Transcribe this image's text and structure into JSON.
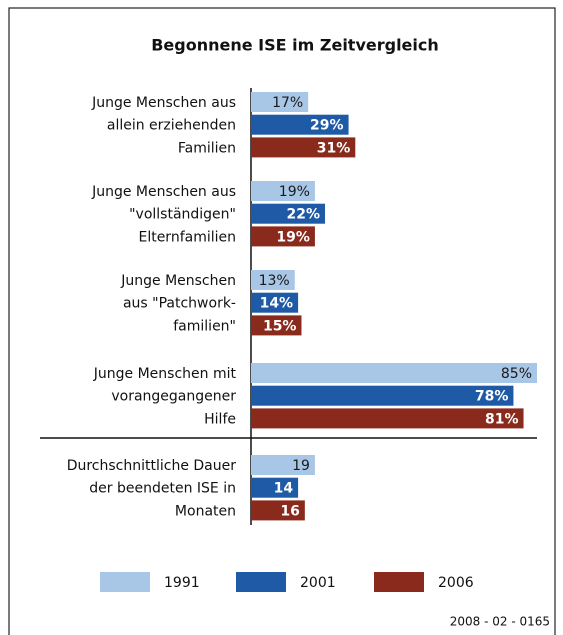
{
  "chart_data": {
    "type": "bar",
    "orientation": "horizontal",
    "title": "Begonnene ISE im Zeitvergleich",
    "categories": [
      [
        "Junge Menschen aus",
        "allein erziehenden",
        "Familien"
      ],
      [
        "Junge Menschen aus",
        "\"vollständigen\"",
        "Elternfamilien"
      ],
      [
        "Junge Menschen",
        "aus \"Patchwork-",
        "familien\""
      ],
      [
        "Junge Menschen mit",
        "vorangegangener",
        "Hilfe"
      ],
      [
        "Durchschnittliche Dauer",
        "der beendeten ISE in",
        "Monaten"
      ]
    ],
    "series": [
      {
        "name": "1991",
        "color": "#a8c6e6",
        "values": [
          17,
          19,
          13,
          85,
          19
        ],
        "value_labels": [
          "17%",
          "19%",
          "13%",
          "85%",
          "19"
        ]
      },
      {
        "name": "2001",
        "color": "#1f5aa6",
        "values": [
          29,
          22,
          14,
          78,
          14
        ],
        "value_labels": [
          "29%",
          "22%",
          "14%",
          "78%",
          "14"
        ]
      },
      {
        "name": "2006",
        "color": "#8a2a1c",
        "values": [
          31,
          19,
          15,
          81,
          16
        ],
        "value_labels": [
          "31%",
          "19%",
          "15%",
          "81%",
          "16"
        ]
      }
    ],
    "xlim": [
      0,
      85
    ],
    "footnote": "2008 - 02 - 0165"
  }
}
